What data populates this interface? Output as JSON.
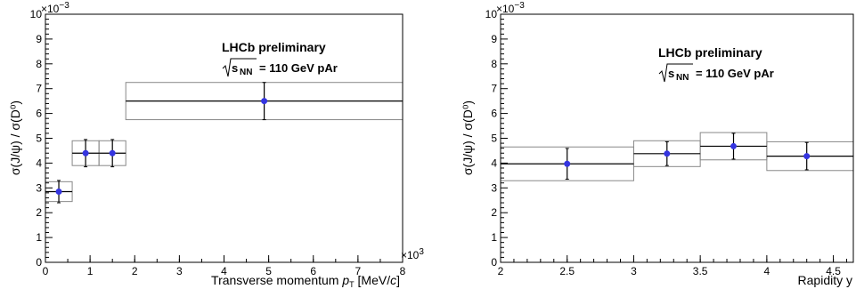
{
  "colors": {
    "marker": "#3535e0",
    "stat_line": "#000000",
    "syst_box": "#888888",
    "axis": "#000000"
  },
  "chart_data": [
    {
      "type": "scatter",
      "title": "",
      "label": "LHCb preliminary",
      "energy_prefix": "s",
      "energy_sub": "NN",
      "energy_suffix": "= 110 GeV pAr",
      "xlabel": "Transverse momentum",
      "xlabel_var": "p",
      "xlabel_var_sub": "T",
      "xlabel_unit_pre": "[MeV/",
      "xlabel_unit_c": "c",
      "xlabel_unit_post": "]",
      "ylabel": "σ(J/ψ) / σ(D⁰)",
      "xlim": [
        0,
        8000
      ],
      "ylim": [
        0,
        0.01
      ],
      "x_multiplier": "×10",
      "x_multiplier_exp": "3",
      "y_multiplier": "×10",
      "y_multiplier_exp": "−3",
      "x_ticks": [
        "0",
        "1",
        "2",
        "3",
        "4",
        "5",
        "6",
        "7",
        "8"
      ],
      "y_ticks": [
        "0",
        "1",
        "2",
        "3",
        "4",
        "5",
        "6",
        "7",
        "8",
        "9",
        "10"
      ],
      "grid": false,
      "points": [
        {
          "x": 300,
          "xlo": 0,
          "xhi": 600,
          "y": 0.00285,
          "stat": 0.00045,
          "syst": 0.0004
        },
        {
          "x": 900,
          "xlo": 600,
          "xhi": 1200,
          "y": 0.0044,
          "stat": 0.00055,
          "syst": 0.0005
        },
        {
          "x": 1500,
          "xlo": 1200,
          "xhi": 1800,
          "y": 0.0044,
          "stat": 0.00055,
          "syst": 0.0005
        },
        {
          "x": 4900,
          "xlo": 1800,
          "xhi": 8000,
          "y": 0.0065,
          "stat": 0.00075,
          "syst": 0.00075
        }
      ]
    },
    {
      "type": "scatter",
      "title": "",
      "label": "LHCb preliminary",
      "energy_prefix": "s",
      "energy_sub": "NN",
      "energy_suffix": "= 110 GeV pAr",
      "xlabel": "Rapidity y",
      "ylabel": "σ(J/ψ) / σ(D⁰)",
      "xlim": [
        2,
        4.65
      ],
      "ylim": [
        0,
        0.01
      ],
      "y_multiplier": "×10",
      "y_multiplier_exp": "−3",
      "x_ticks": [
        "2",
        "2.5",
        "3",
        "3.5",
        "4",
        "4.5"
      ],
      "y_ticks": [
        "0",
        "1",
        "2",
        "3",
        "4",
        "5",
        "6",
        "7",
        "8",
        "9",
        "10"
      ],
      "grid": false,
      "points": [
        {
          "x": 2.5,
          "xlo": 2.0,
          "xhi": 3.0,
          "y": 0.00397,
          "stat": 0.00062,
          "syst": 0.00068
        },
        {
          "x": 3.25,
          "xlo": 3.0,
          "xhi": 3.5,
          "y": 0.00438,
          "stat": 0.00048,
          "syst": 0.00052
        },
        {
          "x": 3.75,
          "xlo": 3.5,
          "xhi": 4.0,
          "y": 0.00468,
          "stat": 0.00052,
          "syst": 0.00055
        },
        {
          "x": 4.3,
          "xlo": 4.0,
          "xhi": 4.65,
          "y": 0.00428,
          "stat": 0.00055,
          "syst": 0.00058
        }
      ]
    }
  ]
}
